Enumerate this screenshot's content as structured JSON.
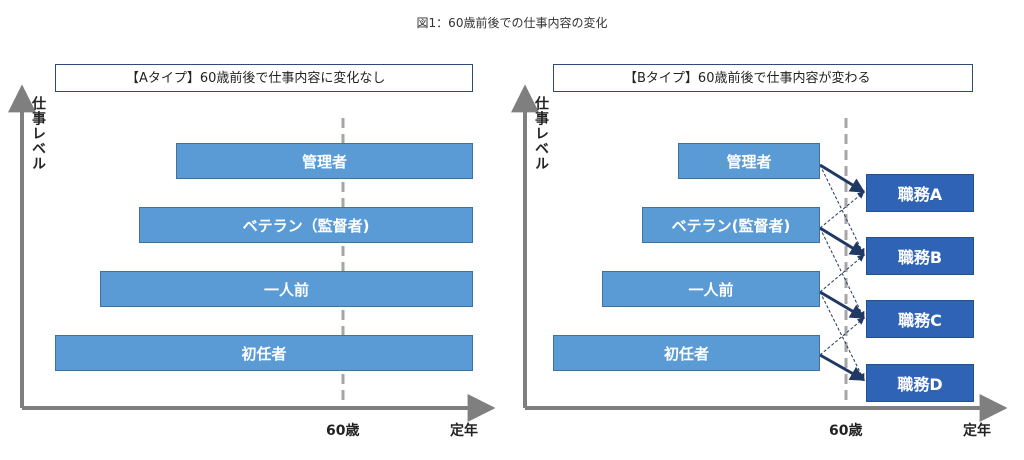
{
  "figure_title": "図1：60歳前後での仕事内容の変化",
  "panel_a": {
    "caption": "【Aタイプ】60歳前後で仕事内容に変化なし",
    "y_axis_label": "仕事レベル",
    "x_axis_end_label": "定年",
    "marker_label": "60歳",
    "bars": [
      "管理者",
      "ベテラン（監督者)",
      "一人前",
      "初任者"
    ]
  },
  "panel_b": {
    "caption": "【Bタイプ】60歳前後で仕事内容が変わる",
    "y_axis_label": "仕事レベル",
    "x_axis_end_label": "定年",
    "marker_label": "60歳",
    "bars": [
      "管理者",
      "ベテラン(監督者)",
      "一人前",
      "初任者"
    ],
    "duties": [
      "職務A",
      "職務B",
      "職務C",
      "職務D"
    ]
  },
  "colors": {
    "bar": "#5b9bd5",
    "duty": "#2f63b5",
    "axis": "#7f7f7f",
    "arrow": "#1f3864"
  }
}
